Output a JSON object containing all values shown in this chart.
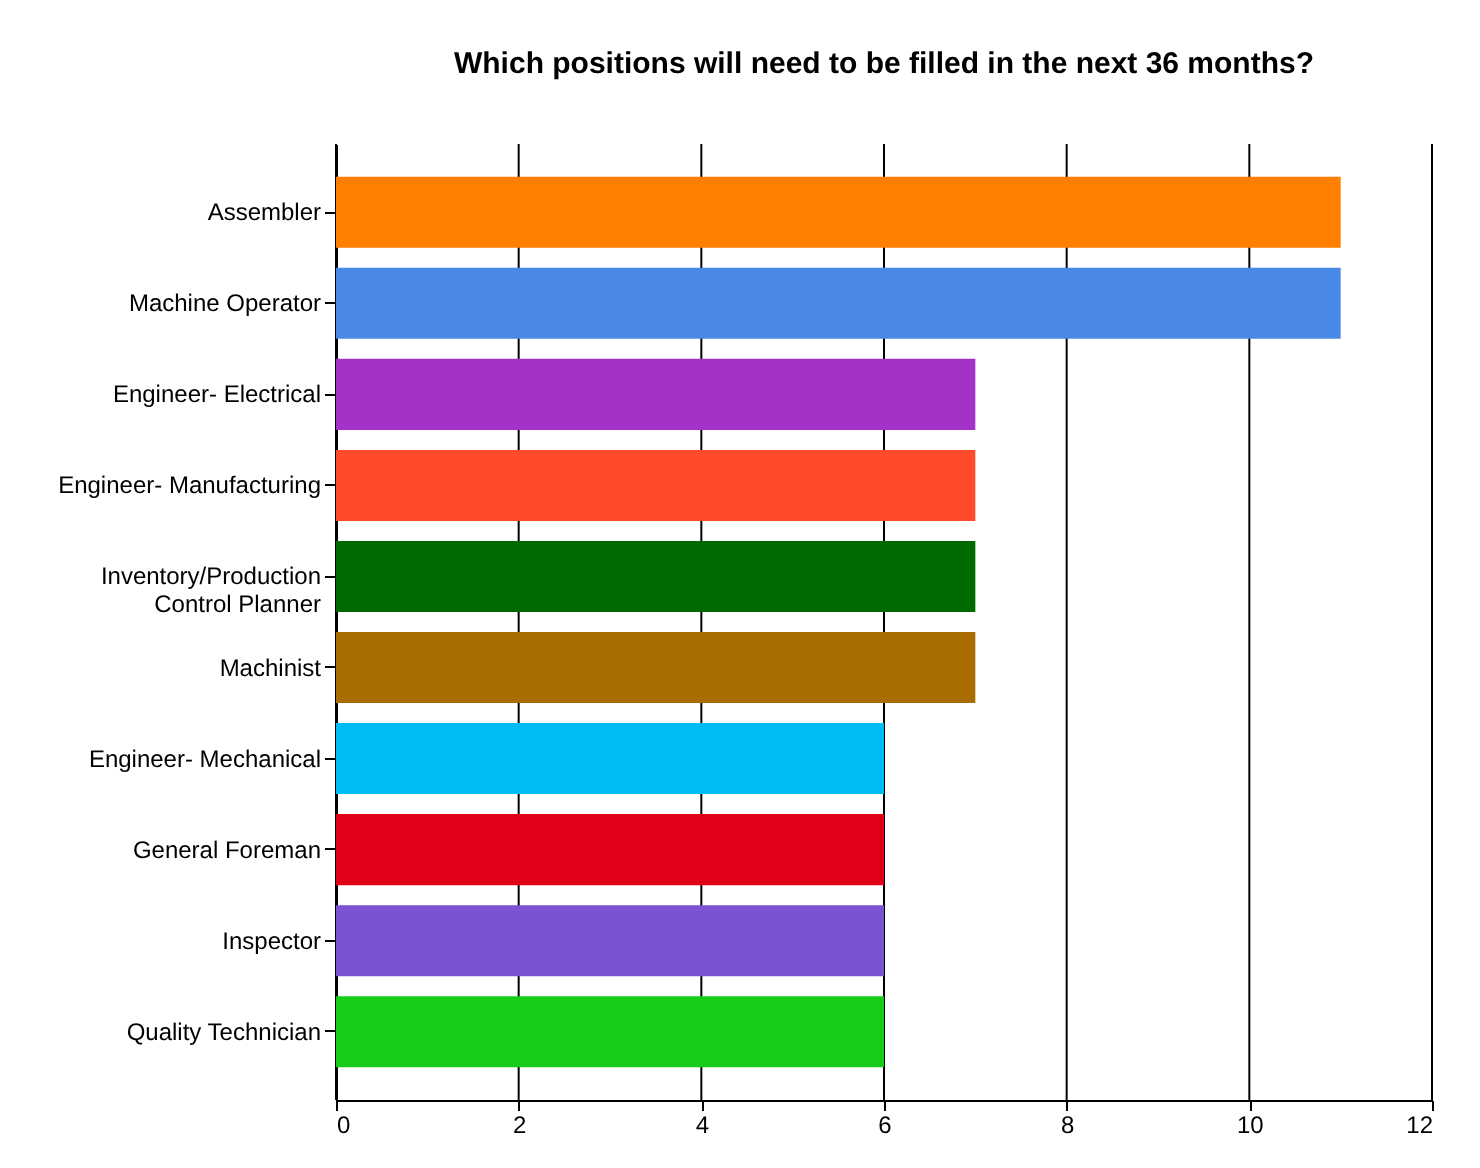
{
  "chart_data": {
    "type": "bar",
    "orientation": "horizontal",
    "title": "Which positions will need to be filled in the next 36 months?",
    "categories": [
      "Assembler",
      "Machine Operator",
      "Engineer- Electrical",
      "Engineer- Manufacturing",
      "Inventory/Production\nControl Planner",
      "Machinist",
      "Engineer- Mechanical",
      "General Foreman",
      "Inspector",
      "Quality Technician"
    ],
    "values": [
      11,
      11,
      7,
      7,
      7,
      7,
      6,
      6,
      6,
      6
    ],
    "colors": [
      "#ff8000",
      "#4a88e8",
      "#a532c8",
      "#ff4a2c",
      "#006a00",
      "#a86c00",
      "#00bcf4",
      "#e00018",
      "#7a52d4",
      "#16cc16"
    ],
    "xlim": [
      0,
      12
    ],
    "xticks": [
      0,
      2,
      4,
      6,
      8,
      10,
      12
    ],
    "grid": "x",
    "legend": false
  }
}
